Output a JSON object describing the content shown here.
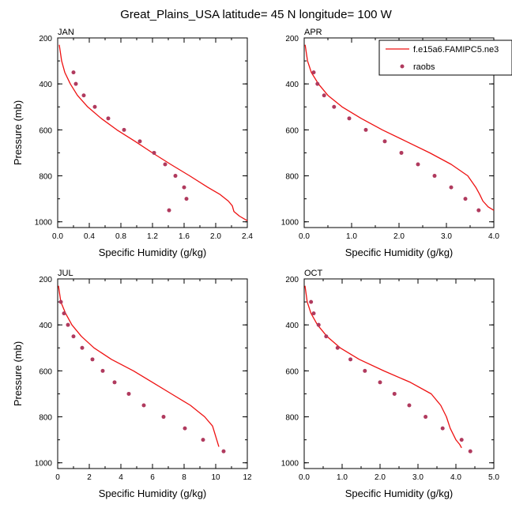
{
  "figure": {
    "title": "Great_Plains_USA  latitude= 45 N longitude= 100 W"
  },
  "colors": {
    "model": "#ee1111",
    "raobs": "#b03a5e",
    "axis": "#000000"
  },
  "legend": {
    "model_label": "f.e15a6.FAMIPC5.ne3",
    "raobs_label": "raobs",
    "placement": "top-right of APR panel"
  },
  "chart_data": [
    {
      "type": "line",
      "panel": "JAN",
      "title": "JAN",
      "xlabel": "Specific Humidity (g/kg)",
      "ylabel": "Pressure (mb)",
      "xlim": [
        0,
        2.4
      ],
      "ylim": [
        200,
        1025
      ],
      "y_reversed": true,
      "xticks": [
        0,
        0.4,
        0.8,
        1.2,
        1.6,
        2.0,
        2.4
      ],
      "xtick_labels": [
        "0.0",
        "0.4",
        "0.8",
        "1.2",
        "1.6",
        "2.0",
        "2.4"
      ],
      "xminor": 0.2,
      "yticks": [
        200,
        400,
        600,
        800,
        1000
      ],
      "ytick_labels": [
        "200",
        "400",
        "600",
        "800",
        "1000"
      ],
      "yminor": 100,
      "series": [
        {
          "name": "f.e15a6.FAMIPC5.ne3",
          "kind": "line",
          "x": [
            0.02,
            0.05,
            0.09,
            0.16,
            0.25,
            0.38,
            0.55,
            0.75,
            0.98,
            1.2,
            1.43,
            1.67,
            1.9,
            2.05,
            2.16,
            2.21,
            2.23,
            2.3,
            2.4
          ],
          "y": [
            230,
            300,
            350,
            400,
            450,
            500,
            550,
            600,
            650,
            700,
            750,
            800,
            850,
            880,
            910,
            930,
            955,
            975,
            995
          ]
        },
        {
          "name": "raobs",
          "kind": "scatter",
          "x": [
            0.2,
            0.23,
            0.33,
            0.47,
            0.64,
            0.84,
            1.04,
            1.22,
            1.36,
            1.49,
            1.6,
            1.63,
            1.41
          ],
          "y": [
            350,
            400,
            450,
            500,
            550,
            600,
            650,
            700,
            750,
            800,
            850,
            900,
            950
          ]
        }
      ]
    },
    {
      "type": "line",
      "panel": "APR",
      "title": "APR",
      "xlabel": "Specific Humidity (g/kg)",
      "ylabel": "",
      "xlim": [
        0,
        4.0
      ],
      "ylim": [
        200,
        1025
      ],
      "y_reversed": true,
      "xticks": [
        0,
        1,
        2,
        3,
        4
      ],
      "xtick_labels": [
        "0.0",
        "1.0",
        "2.0",
        "3.0",
        "4.0"
      ],
      "xminor": 0.5,
      "yticks": [
        200,
        400,
        600,
        800,
        1000
      ],
      "ytick_labels": [
        "200",
        "400",
        "600",
        "800",
        "1000"
      ],
      "yminor": 100,
      "series": [
        {
          "name": "f.e15a6.FAMIPC5.ne3",
          "kind": "line",
          "x": [
            0.02,
            0.07,
            0.15,
            0.3,
            0.5,
            0.8,
            1.2,
            1.65,
            2.15,
            2.65,
            3.1,
            3.45,
            3.62,
            3.7,
            3.77,
            3.88,
            4.0
          ],
          "y": [
            230,
            300,
            350,
            400,
            450,
            500,
            550,
            600,
            650,
            700,
            750,
            800,
            850,
            880,
            910,
            935,
            950
          ]
        },
        {
          "name": "raobs",
          "kind": "scatter",
          "x": [
            0.2,
            0.28,
            0.42,
            0.63,
            0.95,
            1.3,
            1.7,
            2.05,
            2.4,
            2.75,
            3.1,
            3.4,
            3.68
          ],
          "y": [
            350,
            400,
            450,
            500,
            550,
            600,
            650,
            700,
            750,
            800,
            850,
            900,
            950
          ]
        }
      ]
    },
    {
      "type": "line",
      "panel": "JUL",
      "title": "JUL",
      "xlabel": "Specific Humidity (g/kg)",
      "ylabel": "Pressure (mb)",
      "xlim": [
        0,
        12
      ],
      "ylim": [
        200,
        1025
      ],
      "y_reversed": true,
      "xticks": [
        0,
        2,
        4,
        6,
        8,
        10,
        12
      ],
      "xtick_labels": [
        "0",
        "2",
        "4",
        "6",
        "8",
        "10",
        "12"
      ],
      "xminor": 1,
      "yticks": [
        200,
        400,
        600,
        800,
        1000
      ],
      "ytick_labels": [
        "200",
        "400",
        "600",
        "800",
        "1000"
      ],
      "yminor": 100,
      "series": [
        {
          "name": "f.e15a6.FAMIPC5.ne3",
          "kind": "line",
          "x": [
            0.05,
            0.2,
            0.5,
            0.9,
            1.5,
            2.3,
            3.4,
            4.8,
            6.0,
            7.2,
            8.4,
            9.3,
            9.8,
            10.2
          ],
          "y": [
            230,
            300,
            350,
            400,
            450,
            500,
            550,
            600,
            650,
            700,
            750,
            800,
            840,
            930
          ]
        },
        {
          "name": "raobs",
          "kind": "scatter",
          "x": [
            0.2,
            0.4,
            0.65,
            1.0,
            1.55,
            2.2,
            2.85,
            3.6,
            4.5,
            5.45,
            6.7,
            8.05,
            9.2,
            10.5
          ],
          "y": [
            300,
            350,
            400,
            450,
            500,
            550,
            600,
            650,
            700,
            750,
            800,
            850,
            900,
            950
          ]
        }
      ]
    },
    {
      "type": "line",
      "panel": "OCT",
      "title": "OCT",
      "xlabel": "Specific Humidity (g/kg)",
      "ylabel": "",
      "xlim": [
        0,
        5.0
      ],
      "ylim": [
        200,
        1025
      ],
      "y_reversed": true,
      "xticks": [
        0,
        1,
        2,
        3,
        4,
        5
      ],
      "xtick_labels": [
        "0.0",
        "1.0",
        "2.0",
        "3.0",
        "4.0",
        "5.0"
      ],
      "xminor": 0.5,
      "yticks": [
        200,
        400,
        600,
        800,
        1000
      ],
      "ytick_labels": [
        "200",
        "400",
        "600",
        "800",
        "1000"
      ],
      "yminor": 100,
      "series": [
        {
          "name": "f.e15a6.FAMIPC5.ne3",
          "kind": "line",
          "x": [
            0.02,
            0.08,
            0.18,
            0.35,
            0.6,
            0.95,
            1.45,
            2.1,
            2.8,
            3.35,
            3.6,
            3.75,
            3.85,
            4.0,
            4.1,
            4.15
          ],
          "y": [
            230,
            300,
            350,
            400,
            450,
            500,
            550,
            600,
            650,
            700,
            750,
            800,
            850,
            900,
            920,
            935
          ]
        },
        {
          "name": "raobs",
          "kind": "scatter",
          "x": [
            0.18,
            0.25,
            0.38,
            0.58,
            0.88,
            1.22,
            1.6,
            2.0,
            2.38,
            2.77,
            3.2,
            3.65,
            4.15,
            4.38
          ],
          "y": [
            300,
            350,
            400,
            450,
            500,
            550,
            600,
            650,
            700,
            750,
            800,
            850,
            900,
            950
          ]
        }
      ]
    }
  ]
}
